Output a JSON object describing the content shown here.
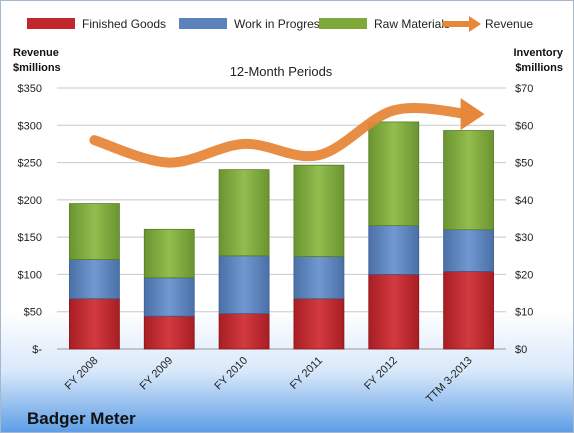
{
  "chart_data": {
    "type": "bar",
    "stacked": true,
    "title": "12-Month Periods",
    "company": "Badger Meter",
    "categories": [
      "FY 2008",
      "FY 2009",
      "FY 2010",
      "FY 2011",
      "FY 2012",
      "TTM 3-2013"
    ],
    "left_axis": {
      "label_line1": "Revenue",
      "label_line2": "$millions",
      "ylim": [
        0,
        350
      ],
      "ticks": [
        "$-",
        "$50",
        "$100",
        "$150",
        "$200",
        "$250",
        "$300",
        "$350"
      ]
    },
    "right_axis": {
      "label_line1": "Inventory",
      "label_line2": "$millions",
      "ylim": [
        0,
        70
      ],
      "ticks": [
        "$0",
        "$10",
        "$20",
        "$30",
        "$40",
        "$50",
        "$60",
        "$70"
      ]
    },
    "series": [
      {
        "name": "Finished Goods",
        "axis": "right",
        "color": "#c0272d",
        "values": [
          13.5,
          8.8,
          9.5,
          13.5,
          20.0,
          20.8
        ]
      },
      {
        "name": "Work in Progress",
        "axis": "right",
        "color": "#5b82bd",
        "values": [
          10.5,
          10.3,
          15.5,
          11.3,
          13.1,
          11.2
        ]
      },
      {
        "name": "Raw Materials",
        "axis": "right",
        "color": "#7fa83a",
        "values": [
          15.0,
          13.0,
          23.1,
          24.5,
          27.8,
          26.6
        ]
      },
      {
        "name": "Revenue",
        "axis": "left",
        "color": "#e6873a",
        "type": "line",
        "values": [
          280,
          250,
          275,
          260,
          320,
          315
        ]
      }
    ],
    "grid": true,
    "legend": "top"
  }
}
